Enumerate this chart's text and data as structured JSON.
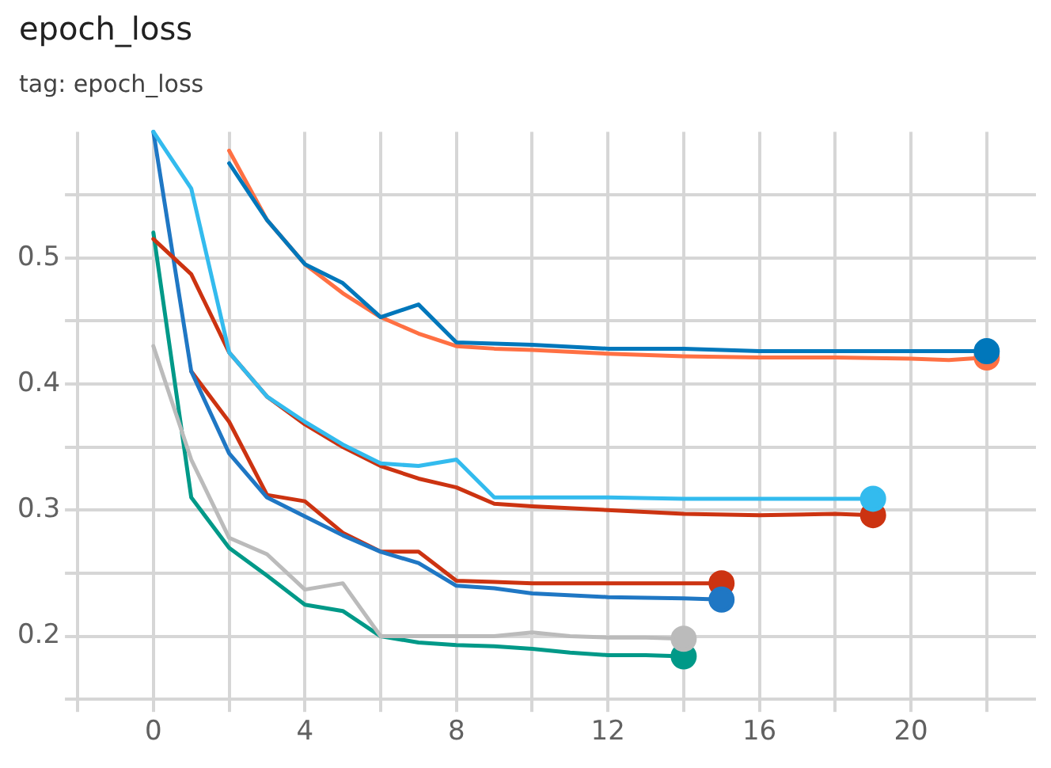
{
  "chart_data": {
    "type": "line",
    "title": "epoch_loss",
    "subtitle": "tag: epoch_loss",
    "xlim": [
      -2,
      23.3
    ],
    "ylim": [
      0.15,
      0.6
    ],
    "xticks": [
      {
        "value": -2,
        "label": null
      },
      0,
      {
        "value": 2,
        "label": null
      },
      4,
      {
        "value": 6,
        "label": null
      },
      8,
      {
        "value": 10,
        "label": null
      },
      12,
      {
        "value": 14,
        "label": null
      },
      16,
      {
        "value": 18,
        "label": null
      },
      20,
      {
        "value": 22,
        "label": null
      }
    ],
    "yticks": [
      {
        "value": 0.15,
        "label": null
      },
      0.2,
      {
        "value": 0.25,
        "label": null
      },
      0.3,
      {
        "value": 0.35,
        "label": null
      },
      0.4,
      {
        "value": 0.45,
        "label": null
      },
      0.5,
      {
        "value": 0.55,
        "label": null
      }
    ],
    "grid": true,
    "legend": false,
    "line_style": "solid",
    "series": [
      {
        "color": "#0077bb",
        "x": [
          2,
          3,
          4,
          5,
          6,
          7,
          8,
          9,
          10,
          12,
          14,
          16,
          18,
          20,
          22
        ],
        "values": [
          0.575,
          0.53,
          0.495,
          0.48,
          0.453,
          0.463,
          0.433,
          0.432,
          0.431,
          0.428,
          0.428,
          0.426,
          0.426,
          0.426,
          0.426
        ]
      },
      {
        "color": "#ff7043",
        "x": [
          2,
          3,
          4,
          5,
          6,
          7,
          8,
          9,
          10,
          12,
          14,
          16,
          18,
          20,
          21,
          22
        ],
        "values": [
          0.585,
          0.53,
          0.495,
          0.472,
          0.453,
          0.44,
          0.43,
          0.428,
          0.427,
          0.424,
          0.422,
          0.421,
          0.421,
          0.42,
          0.419,
          0.421
        ]
      },
      {
        "color": "#33bbee",
        "x": [
          0,
          1,
          2,
          3,
          4,
          5,
          6,
          7,
          8,
          9,
          10,
          12,
          14,
          16,
          18,
          19
        ],
        "values": [
          0.6,
          0.555,
          0.425,
          0.39,
          0.37,
          0.352,
          0.337,
          0.335,
          0.34,
          0.31,
          0.31,
          0.31,
          0.309,
          0.309,
          0.309,
          0.309
        ]
      },
      {
        "color": "#cc3311",
        "x": [
          0,
          1,
          2,
          3,
          4,
          5,
          6,
          7,
          8,
          9,
          10,
          12,
          14,
          16,
          18,
          19
        ],
        "values": [
          0.515,
          0.487,
          0.425,
          0.39,
          0.368,
          0.35,
          0.335,
          0.325,
          0.318,
          0.305,
          0.303,
          0.3,
          0.297,
          0.296,
          0.297,
          0.296
        ]
      },
      {
        "color": "#1f77c4",
        "x": [
          0,
          1,
          2,
          3,
          4,
          5,
          6,
          7,
          8,
          9,
          10,
          12,
          14,
          15
        ],
        "values": [
          0.6,
          0.41,
          0.345,
          0.31,
          0.295,
          0.28,
          0.267,
          0.258,
          0.24,
          0.238,
          0.234,
          0.231,
          0.23,
          0.229
        ]
      },
      {
        "color": "#cc3311",
        "x": [
          1,
          2,
          3,
          4,
          5,
          6,
          7,
          8,
          9,
          10,
          12,
          14,
          15
        ],
        "values": [
          0.41,
          0.37,
          0.312,
          0.307,
          0.282,
          0.267,
          0.267,
          0.244,
          0.243,
          0.242,
          0.242,
          0.242,
          0.242
        ]
      },
      {
        "color": "#bbbbbb",
        "x": [
          0,
          1,
          2,
          3,
          4,
          5,
          6,
          7,
          8,
          9,
          10,
          11,
          12,
          13,
          14
        ],
        "values": [
          0.43,
          0.34,
          0.278,
          0.265,
          0.237,
          0.242,
          0.2,
          0.2,
          0.2,
          0.2,
          0.203,
          0.2,
          0.199,
          0.199,
          0.198
        ]
      },
      {
        "color": "#009988",
        "x": [
          0,
          1,
          2,
          3,
          4,
          5,
          6,
          7,
          8,
          9,
          10,
          11,
          12,
          13,
          14
        ],
        "values": [
          0.52,
          0.31,
          0.27,
          0.248,
          0.225,
          0.22,
          0.2,
          0.195,
          0.193,
          0.192,
          0.19,
          0.187,
          0.185,
          0.185,
          0.184
        ]
      }
    ]
  }
}
